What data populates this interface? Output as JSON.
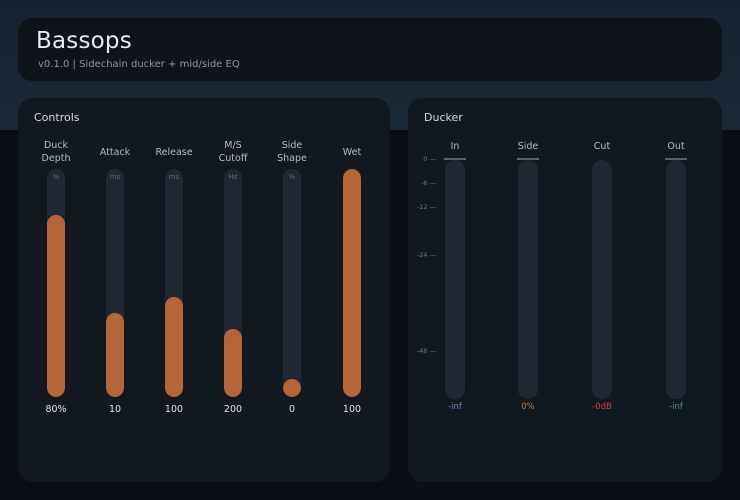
{
  "header": {
    "title": "Bassops",
    "subtitle": "v0.1.0  |  Sidechain ducker + mid/side EQ"
  },
  "controls": {
    "title": "Controls",
    "fill_color": "#b4653a",
    "knobs": [
      {
        "label": "Duck\nDepth",
        "unit": "%",
        "value": "80%",
        "level": 0.8
      },
      {
        "label": "Attack",
        "unit": "ms",
        "value": "10",
        "level": 0.37
      },
      {
        "label": "Release",
        "unit": "ms",
        "value": "100",
        "level": 0.44
      },
      {
        "label": "M/S\nCutoff",
        "unit": "Hz",
        "value": "200",
        "level": 0.3
      },
      {
        "label": "Side\nShape",
        "unit": "%",
        "value": "0",
        "level": 0.0
      },
      {
        "label": "Wet",
        "unit": "",
        "value": "100",
        "level": 1.0
      }
    ]
  },
  "ducker": {
    "title": "Ducker",
    "scale": [
      "0",
      "-6",
      "-12",
      "-24",
      "-48"
    ],
    "meters": [
      {
        "label": "In",
        "value": "-inf",
        "color": "#5f86b8"
      },
      {
        "label": "Side",
        "value": "0%",
        "color": "#c8783c"
      },
      {
        "label": "Cut",
        "value": "-0dB",
        "color": "#c0453e"
      },
      {
        "label": "Out",
        "value": "-inf",
        "color": "#4f9a5c"
      }
    ]
  }
}
